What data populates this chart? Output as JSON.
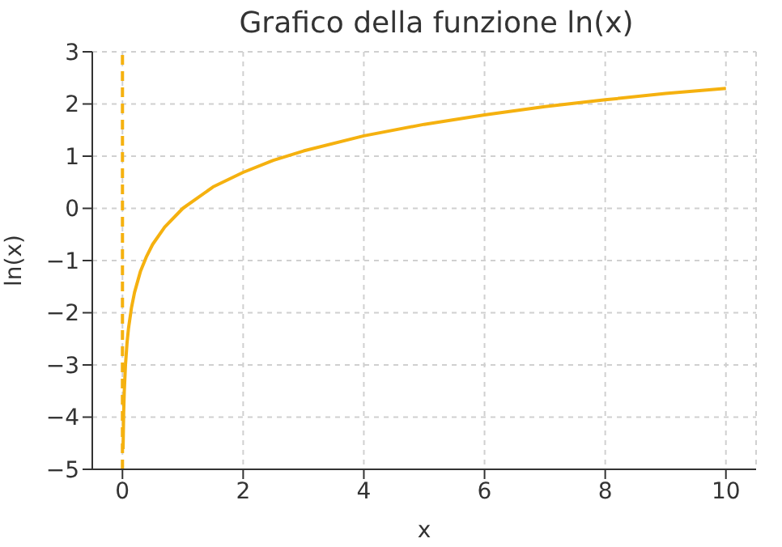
{
  "chart_data": {
    "type": "line",
    "title": "Grafico della funzione ln(x)",
    "xlabel": "x",
    "ylabel": "ln(x)",
    "x": [
      0.01,
      0.02,
      0.03,
      0.05,
      0.075,
      0.1,
      0.15,
      0.2,
      0.3,
      0.4,
      0.5,
      0.7,
      1,
      1.5,
      2,
      2.5,
      3,
      4,
      5,
      6,
      7,
      8,
      9,
      10
    ],
    "series": [
      {
        "color": "#f5b10f",
        "values": [
          -4.61,
          -3.91,
          -3.51,
          -3.0,
          -2.59,
          -2.3,
          -1.9,
          -1.61,
          -1.2,
          -0.92,
          -0.69,
          -0.36,
          0,
          0.41,
          0.69,
          0.92,
          1.1,
          1.39,
          1.61,
          1.79,
          1.95,
          2.08,
          2.2,
          2.3
        ]
      }
    ],
    "xlim": [
      -0.5,
      10.5
    ],
    "xticks": [
      0,
      2,
      4,
      6,
      8,
      10
    ],
    "ylim": [
      -5,
      3
    ],
    "yticks": [
      {
        "value": -5,
        "label": "−5"
      },
      {
        "value": -4,
        "label": "−4"
      },
      {
        "value": -3,
        "label": "−3"
      },
      {
        "value": -2,
        "label": "−2"
      },
      {
        "value": -1,
        "label": "−1"
      },
      0,
      1,
      2,
      3
    ],
    "ref_lines": [
      {
        "axis": "x",
        "value": 0,
        "color": "#f5b10f",
        "line_style": "dashed"
      }
    ],
    "grid": true,
    "marker": "none",
    "line_style": "solid"
  }
}
